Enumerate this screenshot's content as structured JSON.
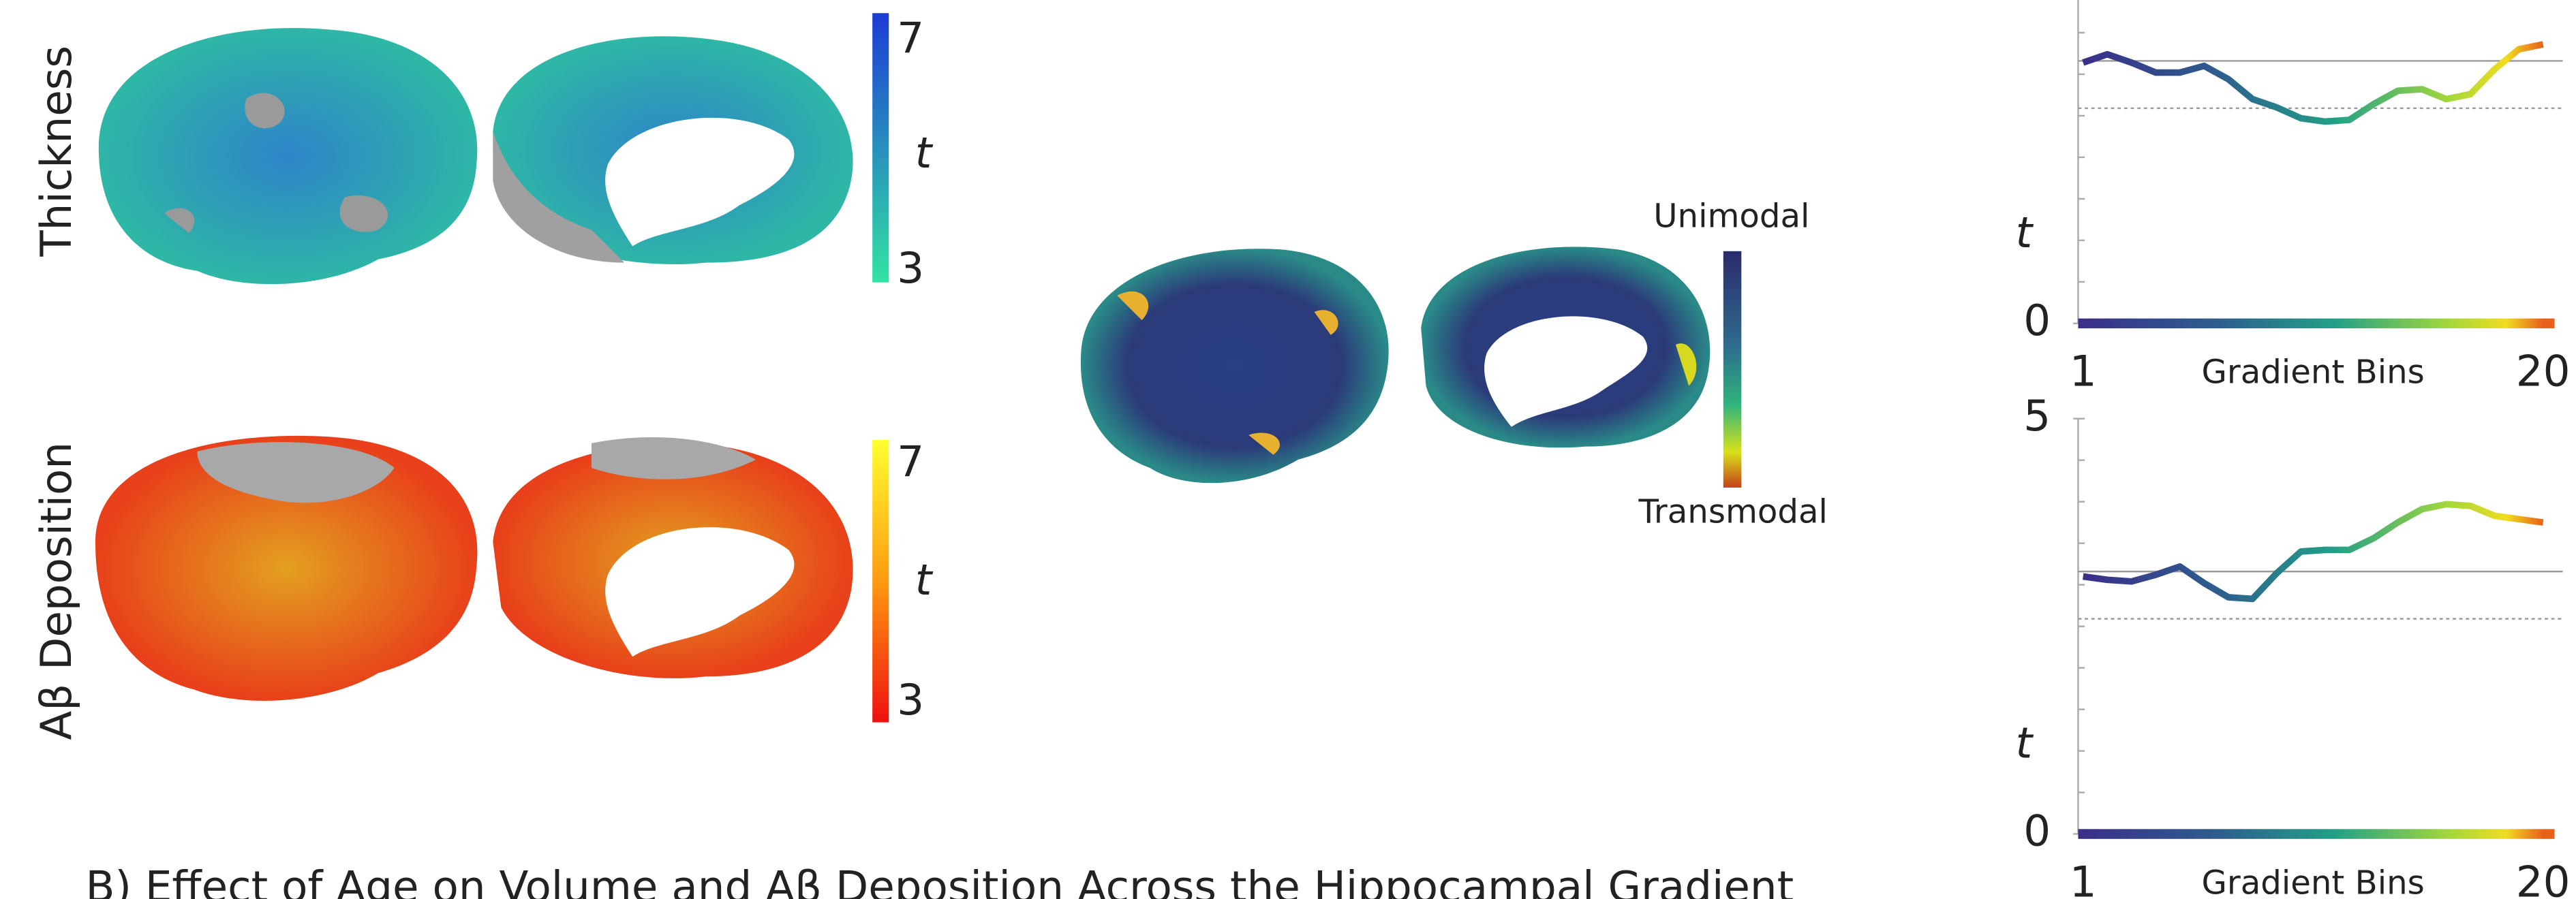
{
  "panels": {
    "thickness": {
      "label": "Thickness",
      "colorbar": {
        "max": "7",
        "symbol": "t",
        "min": "3"
      }
    },
    "abeta": {
      "label": "Aβ Deposition",
      "colorbar": {
        "max": "7",
        "symbol": "t",
        "min": "3"
      }
    },
    "gradient": {
      "top": "Unimodal",
      "bottom": "Transmodal"
    }
  },
  "caption": "B) Effect of Age on Volume and Aβ Deposition Across the Hippocampal Gradient",
  "chart_data": [
    {
      "type": "line",
      "ylabel": "t",
      "xlabel": "Gradient Bins",
      "x": [
        1,
        2,
        3,
        4,
        5,
        6,
        7,
        8,
        9,
        10,
        11,
        12,
        13,
        14,
        15,
        16,
        17,
        18,
        19,
        20
      ],
      "values": [
        3.14,
        3.24,
        3.14,
        3.02,
        3.02,
        3.1,
        2.94,
        2.7,
        2.6,
        2.47,
        2.43,
        2.45,
        2.64,
        2.8,
        2.82,
        2.7,
        2.76,
        3.06,
        3.3,
        3.36
      ],
      "xlim": [
        1,
        20
      ],
      "xticks": [
        1,
        20
      ],
      "ylim": [
        0,
        5
      ],
      "yticks": [
        0
      ],
      "hlines": [
        {
          "value": 3.16,
          "style": "solid"
        },
        {
          "value": 2.59,
          "style": "dotted"
        }
      ]
    },
    {
      "type": "line",
      "ylabel": "t",
      "xlabel": "Gradient Bins",
      "x": [
        1,
        2,
        3,
        4,
        5,
        6,
        7,
        8,
        9,
        10,
        11,
        12,
        13,
        14,
        15,
        16,
        17,
        18,
        19,
        20
      ],
      "values": [
        3.1,
        3.06,
        3.04,
        3.12,
        3.22,
        3.02,
        2.85,
        2.83,
        3.14,
        3.4,
        3.42,
        3.42,
        3.56,
        3.75,
        3.91,
        3.97,
        3.95,
        3.83,
        3.79,
        3.75
      ],
      "xlim": [
        1,
        20
      ],
      "xticks": [
        1,
        20
      ],
      "ylim": [
        0,
        5
      ],
      "yticks": [
        0,
        5
      ],
      "hlines": [
        {
          "value": 3.16,
          "style": "solid"
        },
        {
          "value": 2.59,
          "style": "dotted"
        }
      ]
    }
  ]
}
